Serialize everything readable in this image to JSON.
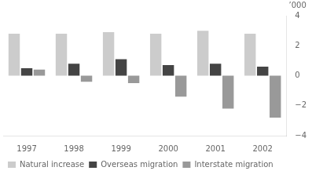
{
  "chart_data": {
    "type": "bar",
    "categories": [
      "1997",
      "1998",
      "1999",
      "2000",
      "2001",
      "2002"
    ],
    "series": [
      {
        "name": "Natural increase",
        "color": "#cccccc",
        "values": [
          2.8,
          2.8,
          2.9,
          2.8,
          3.0,
          2.8
        ]
      },
      {
        "name": "Overseas migration",
        "color": "#444444",
        "values": [
          0.5,
          0.8,
          1.1,
          0.7,
          0.8,
          0.6
        ]
      },
      {
        "name": "Interstate migration",
        "color": "#999999",
        "values": [
          0.4,
          -0.4,
          -0.5,
          -1.4,
          -2.2,
          -2.8
        ]
      }
    ],
    "ylabel": "’000",
    "ylim": [
      -4,
      4
    ],
    "yticks": [
      {
        "value": -4,
        "label": "−4"
      },
      {
        "value": -2,
        "label": "−2"
      },
      0,
      2,
      4
    ],
    "grid": false,
    "legend": "lower left"
  }
}
